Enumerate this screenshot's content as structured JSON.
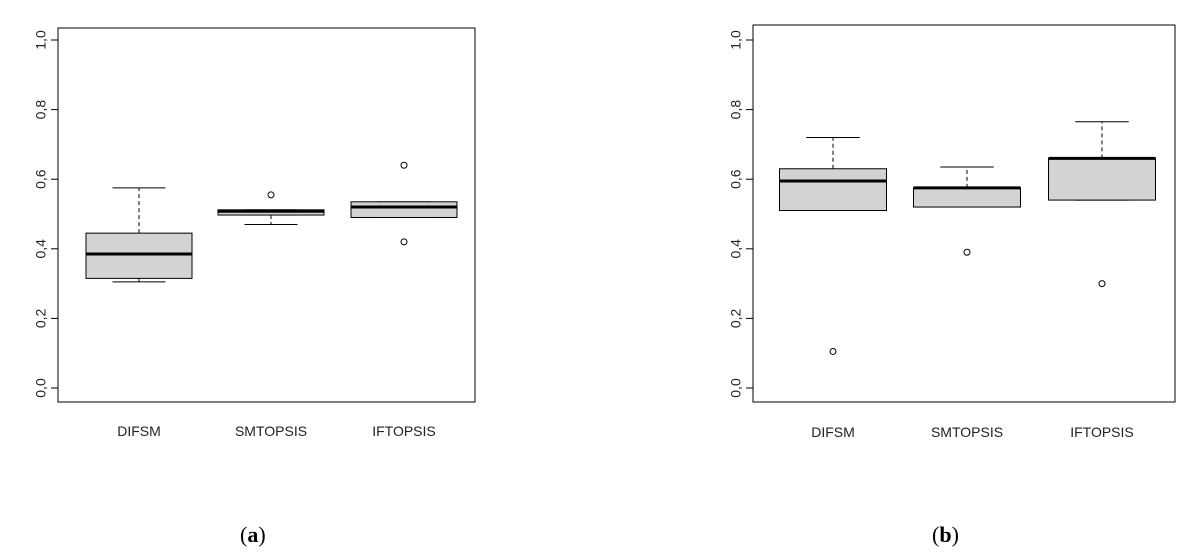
{
  "chart_data": [
    {
      "type": "box",
      "panel_label": "(a)",
      "panel_letter": "a",
      "categories": [
        "DIFSM",
        "SMTOPSIS",
        "IFTOPSIS"
      ],
      "ylim": [
        0,
        1
      ],
      "yticks": [
        "0,0",
        "0,2",
        "0,4",
        "0,6",
        "0,8",
        "1,0"
      ],
      "ytick_values": [
        0,
        0.2,
        0.4,
        0.6,
        0.8,
        1.0
      ],
      "boxes": [
        {
          "name": "DIFSM",
          "whisker_low": 0.305,
          "q1": 0.315,
          "median": 0.385,
          "q3": 0.445,
          "whisker_high": 0.575,
          "outliers": []
        },
        {
          "name": "SMTOPSIS",
          "whisker_low": 0.47,
          "q1": 0.497,
          "median": 0.508,
          "q3": 0.512,
          "whisker_high": 0.512,
          "outliers": [
            0.555
          ]
        },
        {
          "name": "IFTOPSIS",
          "whisker_low": 0.49,
          "q1": 0.49,
          "median": 0.52,
          "q3": 0.535,
          "whisker_high": 0.535,
          "outliers": [
            0.64,
            0.42
          ]
        }
      ],
      "colors": {
        "box_fill": "#d3d3d3",
        "line": "#000000"
      }
    },
    {
      "type": "box",
      "panel_label": "(b)",
      "panel_letter": "b",
      "categories": [
        "DIFSM",
        "SMTOPSIS",
        "IFTOPSIS"
      ],
      "ylim": [
        0,
        1
      ],
      "yticks": [
        "0,0",
        "0,2",
        "0,4",
        "0,6",
        "0,8",
        "1,0"
      ],
      "ytick_values": [
        0,
        0.2,
        0.4,
        0.6,
        0.8,
        1.0
      ],
      "boxes": [
        {
          "name": "DIFSM",
          "whisker_low": 0.51,
          "q1": 0.51,
          "median": 0.595,
          "q3": 0.63,
          "whisker_high": 0.72,
          "outliers": [
            0.105
          ]
        },
        {
          "name": "SMTOPSIS",
          "whisker_low": 0.52,
          "q1": 0.52,
          "median": 0.575,
          "q3": 0.575,
          "whisker_high": 0.635,
          "outliers": [
            0.39
          ]
        },
        {
          "name": "IFTOPSIS",
          "whisker_low": 0.54,
          "q1": 0.54,
          "median": 0.66,
          "q3": 0.66,
          "whisker_high": 0.765,
          "outliers": [
            0.3
          ]
        }
      ],
      "colors": {
        "box_fill": "#d3d3d3",
        "line": "#000000"
      }
    }
  ]
}
